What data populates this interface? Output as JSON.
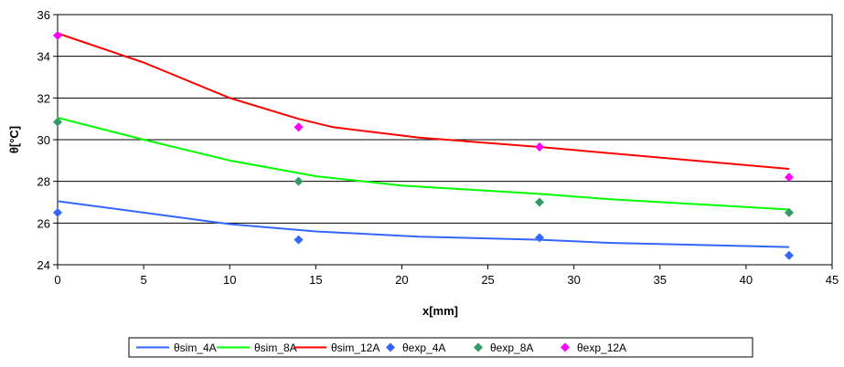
{
  "chart_data": {
    "type": "line",
    "xlabel": "x[mm]",
    "ylabel": "θ[°C]",
    "xlim": [
      0,
      45
    ],
    "ylim": [
      24,
      36
    ],
    "xticks": [
      0,
      5,
      10,
      15,
      20,
      25,
      30,
      35,
      40,
      45
    ],
    "yticks": [
      24,
      26,
      28,
      30,
      32,
      34,
      36
    ],
    "grid": "horizontal",
    "legend_position": "bottom",
    "series": [
      {
        "name": "θsim_4A",
        "kind": "line",
        "color": "#3366ff",
        "x": [
          0,
          5,
          10,
          15,
          21,
          28,
          32,
          42.5
        ],
        "y": [
          27.05,
          26.5,
          25.95,
          25.6,
          25.35,
          25.2,
          25.05,
          24.85
        ]
      },
      {
        "name": "θsim_8A",
        "kind": "line",
        "color": "#00ff00",
        "x": [
          0,
          5,
          10,
          15,
          20,
          28,
          32,
          42.5
        ],
        "y": [
          31.05,
          30.0,
          29.0,
          28.25,
          27.8,
          27.4,
          27.15,
          26.65
        ]
      },
      {
        "name": "θsim_12A",
        "kind": "line",
        "color": "#ff0000",
        "x": [
          0,
          5,
          10,
          14,
          16,
          21,
          28,
          42.5
        ],
        "y": [
          35.1,
          33.7,
          32.0,
          31.0,
          30.6,
          30.1,
          29.65,
          28.6
        ]
      },
      {
        "name": "θexp_4A",
        "kind": "marker",
        "color": "#3366ff",
        "x": [
          0,
          14,
          28,
          42.5
        ],
        "y": [
          26.5,
          25.2,
          25.3,
          24.45
        ]
      },
      {
        "name": "θexp_8A",
        "kind": "marker",
        "color": "#339966",
        "x": [
          0,
          14,
          28,
          42.5
        ],
        "y": [
          30.85,
          28.0,
          27.0,
          26.5
        ]
      },
      {
        "name": "θexp_12A",
        "kind": "marker",
        "color": "#ff00ff",
        "x": [
          0,
          14,
          28,
          42.5
        ],
        "y": [
          35.0,
          30.6,
          29.65,
          28.2
        ]
      }
    ]
  }
}
